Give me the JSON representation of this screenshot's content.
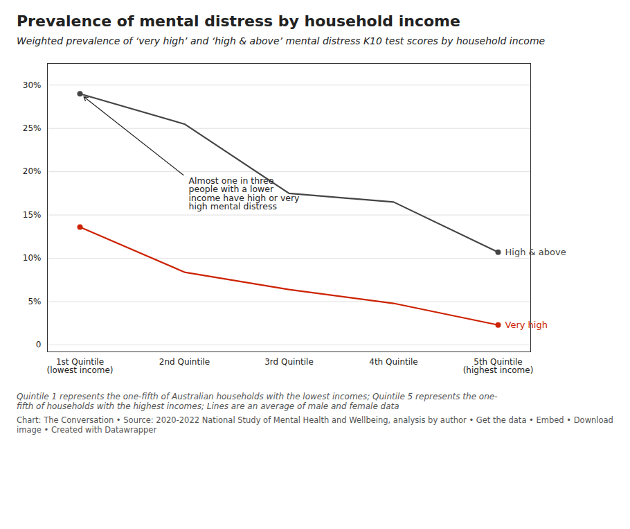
{
  "chart_data": {
    "type": "line",
    "title": "Prevalence of mental distress by household income",
    "subtitle": "Weighted prevalence of ‘very high’ and ‘high & above’ mental distress K10 test scores by household income",
    "categories": [
      "1st Quintile\n(lowest income)",
      "2nd Quintile",
      "3rd Quintile",
      "4th Quintile",
      "5th Quintile\n(highest income)"
    ],
    "series": [
      {
        "name": "High & above",
        "color": "#444444",
        "values": [
          29.0,
          25.5,
          17.5,
          16.5,
          10.7
        ]
      },
      {
        "name": "Very high",
        "color": "#cc2200",
        "values": [
          13.6,
          8.4,
          6.4,
          4.8,
          2.3
        ]
      }
    ],
    "ylim": [
      -0.8,
      32.5
    ],
    "yticks": [
      0,
      {
        "value": 5,
        "label": "5%"
      },
      {
        "value": 10,
        "label": "10%"
      },
      {
        "value": 15,
        "label": "15%"
      },
      {
        "value": 20,
        "label": "20%"
      },
      {
        "value": 25,
        "label": "25%"
      },
      {
        "value": 30,
        "label": "30%"
      }
    ],
    "grid": true,
    "annotations": [
      {
        "text": "Almost one in three\npeople with a lower\nincome have high or very\nhigh mental distress",
        "x": "1st Quintile\n(lowest income)",
        "y": 29.0
      }
    ],
    "footnote": "Quintile 1 represents the one-fifth of Australian households with the lowest incomes; Quintile 5 represents the one-\nfifth of households with the highest incomes; Lines are an average of male and female data",
    "source": "Chart: The Conversation • Source: 2020-2022 National Study of Mental Health and Wellbeing, analysis by author • Get the data • Embed • Download image • Created with Datawrapper"
  }
}
